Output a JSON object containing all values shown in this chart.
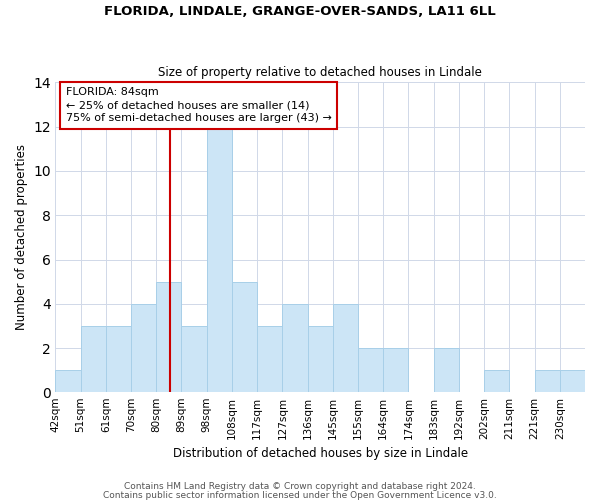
{
  "title": "FLORIDA, LINDALE, GRANGE-OVER-SANDS, LA11 6LL",
  "subtitle": "Size of property relative to detached houses in Lindale",
  "xlabel": "Distribution of detached houses by size in Lindale",
  "ylabel": "Number of detached properties",
  "footnote1": "Contains HM Land Registry data © Crown copyright and database right 2024.",
  "footnote2": "Contains public sector information licensed under the Open Government Licence v3.0.",
  "bin_labels": [
    "42sqm",
    "51sqm",
    "61sqm",
    "70sqm",
    "80sqm",
    "89sqm",
    "98sqm",
    "108sqm",
    "117sqm",
    "127sqm",
    "136sqm",
    "145sqm",
    "155sqm",
    "164sqm",
    "174sqm",
    "183sqm",
    "192sqm",
    "202sqm",
    "211sqm",
    "221sqm",
    "230sqm"
  ],
  "bar_heights": [
    1,
    3,
    3,
    4,
    5,
    3,
    12,
    5,
    3,
    4,
    3,
    4,
    2,
    2,
    0,
    2,
    0,
    1,
    0,
    1,
    1
  ],
  "bar_color": "#cce5f6",
  "bar_edgecolor": "#a8cfe8",
  "vertical_line_index": 4.55,
  "vertical_line_color": "#cc0000",
  "annotation_line1": "FLORIDA: 84sqm",
  "annotation_line2": "← 25% of detached houses are smaller (14)",
  "annotation_line3": "75% of semi-detached houses are larger (43) →",
  "annotation_box_edgecolor": "#cc0000",
  "annotation_box_facecolor": "white",
  "ylim": [
    0,
    14
  ],
  "yticks": [
    0,
    2,
    4,
    6,
    8,
    10,
    12,
    14
  ],
  "grid_color": "#d0d8e8",
  "background_color": "white",
  "title_fontsize": 9.5,
  "subtitle_fontsize": 8.5,
  "axis_label_fontsize": 8.5,
  "tick_fontsize": 7.5,
  "annotation_fontsize": 8.0,
  "footnote_fontsize": 6.5
}
